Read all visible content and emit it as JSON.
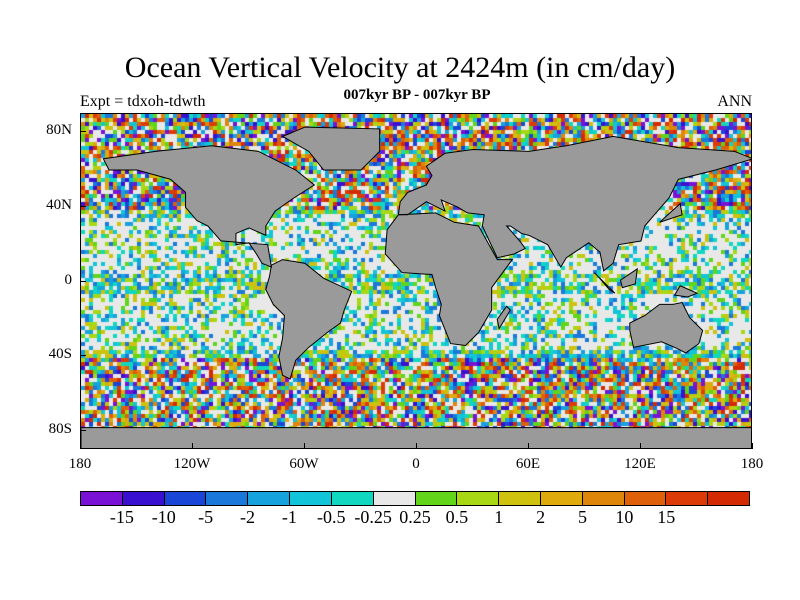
{
  "title": "Ocean Vertical Velocity at 2424m (in cm/day)",
  "subtitle": "007kyr BP - 007kyr BP",
  "left_label": "Expt = tdxoh-tdwth",
  "right_label": "ANN",
  "lat_labels": [
    "80N",
    "40N",
    "0",
    "40S",
    "80S"
  ],
  "lon_labels": [
    "180",
    "120W",
    "60W",
    "0",
    "60E",
    "120E",
    "180"
  ],
  "colorbar": {
    "colors": [
      "#7a12d6",
      "#3a10d0",
      "#1a46d8",
      "#1a78da",
      "#16a2dc",
      "#12c4d8",
      "#10d8c0",
      "#e8e8e8",
      "#62d41a",
      "#a8d814",
      "#cec20e",
      "#deaa0c",
      "#de860a",
      "#de6008",
      "#dc3a06",
      "#d42a04"
    ],
    "labels": [
      "-15",
      "-10",
      "-5",
      "-2",
      "-1",
      "-0.5",
      "-0.25",
      "0.25",
      "0.5",
      "1",
      "2",
      "5",
      "10",
      "15"
    ]
  },
  "colors": {
    "land": "#9a9a9a",
    "near_zero": "#e8e8e8"
  }
}
